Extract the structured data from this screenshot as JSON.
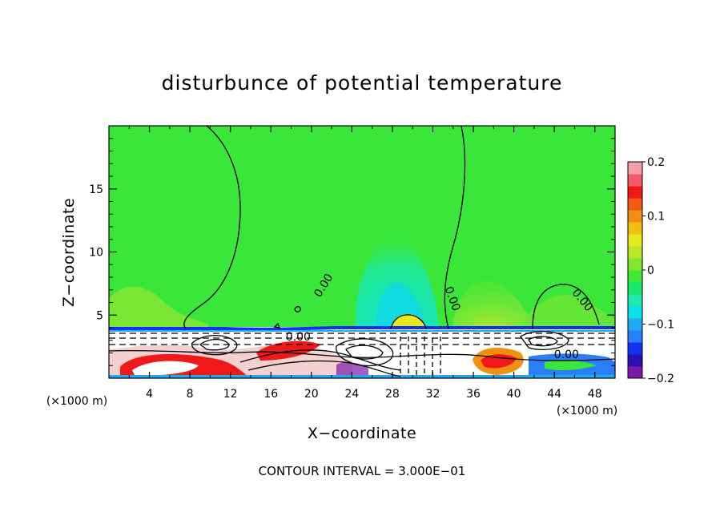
{
  "chart_data": {
    "type": "heatmap",
    "title": "disturbunce of potential temperature",
    "xlabel": "X−coordinate",
    "ylabel": "Z−coordinate",
    "x_unit": "(×1000 m)",
    "z_unit": "(×1000 m)",
    "xlim": [
      0,
      50
    ],
    "ylim": [
      0,
      20
    ],
    "x_ticks": [
      4,
      8,
      12,
      16,
      20,
      24,
      28,
      32,
      36,
      40,
      44,
      48
    ],
    "y_ticks": [
      5,
      10,
      15
    ],
    "colorbar": {
      "min": -0.2,
      "max": 0.2,
      "ticks": [
        "0.2",
        "0.1",
        "0",
        "−0.1",
        "−0.2"
      ],
      "colors": [
        "#7a19a8",
        "#2a10b0",
        "#1232ee",
        "#2a7ef8",
        "#22aaf0",
        "#0ae0e8",
        "#20e8b0",
        "#18e86c",
        "#42e838",
        "#80e630",
        "#b8e828",
        "#e4ea1c",
        "#f0c010",
        "#f09012",
        "#f25a18",
        "#f01818",
        "#f05a6a",
        "#f4a0a8"
      ]
    },
    "contour_labels": [
      {
        "text": "0.00",
        "x": 21.5,
        "z": 7.2
      },
      {
        "text": "0.00",
        "x": 33.6,
        "z": 6.2
      },
      {
        "text": "0.00",
        "x": 46.5,
        "z": 6.0
      },
      {
        "text": "0.00",
        "x": 18.7,
        "z": 3.0
      },
      {
        "text": "0.00",
        "x": 45.2,
        "z": 1.6
      }
    ],
    "contour_interval": "CONTOUR INTERVAL = 3.000E−01"
  }
}
